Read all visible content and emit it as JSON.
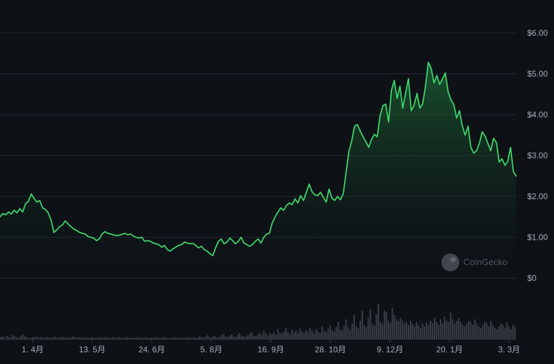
{
  "watermark": {
    "text": "CoinGecko"
  },
  "colors": {
    "background": "#0e1217",
    "line": "#3fd66a",
    "area_top": "#1d6a36",
    "grid": "#232a33",
    "volume": "#3a3f46",
    "tick": "#a6adb6"
  },
  "chart_data": {
    "type": "area",
    "title": "",
    "xlabel": "",
    "ylabel": "",
    "ylim": [
      0,
      6
    ],
    "y_ticks": [
      0,
      1,
      2,
      3,
      4,
      5,
      6
    ],
    "y_tick_labels": [
      "$0",
      "$1.00",
      "$2.00",
      "$3.00",
      "$4.00",
      "$5.00",
      "$6.00"
    ],
    "x_tick_labels": [
      "1. 4月",
      "13. 5月",
      "24. 6月",
      "5. 8月",
      "16. 9月",
      "28. 10月",
      "9. 12月",
      "20. 1月",
      "3. 3月"
    ],
    "x_tick_days": [
      23,
      65,
      107,
      149,
      191,
      233,
      275,
      317,
      359
    ],
    "x_range_days": [
      0,
      364
    ],
    "grid": true,
    "series": [
      {
        "values": [
          [
            0,
            1.5
          ],
          [
            2,
            1.58
          ],
          [
            4,
            1.55
          ],
          [
            6,
            1.62
          ],
          [
            8,
            1.57
          ],
          [
            10,
            1.66
          ],
          [
            12,
            1.6
          ],
          [
            14,
            1.7
          ],
          [
            16,
            1.62
          ],
          [
            18,
            1.82
          ],
          [
            20,
            1.88
          ],
          [
            22,
            2.06
          ],
          [
            24,
            1.95
          ],
          [
            26,
            1.86
          ],
          [
            28,
            1.9
          ],
          [
            30,
            1.72
          ],
          [
            32,
            1.68
          ],
          [
            34,
            1.6
          ],
          [
            36,
            1.42
          ],
          [
            38,
            1.12
          ],
          [
            40,
            1.18
          ],
          [
            42,
            1.26
          ],
          [
            44,
            1.3
          ],
          [
            46,
            1.4
          ],
          [
            48,
            1.33
          ],
          [
            50,
            1.26
          ],
          [
            52,
            1.2
          ],
          [
            54,
            1.17
          ],
          [
            56,
            1.12
          ],
          [
            58,
            1.1
          ],
          [
            60,
            1.08
          ],
          [
            62,
            1.02
          ],
          [
            64,
            1.0
          ],
          [
            66,
            0.98
          ],
          [
            68,
            0.92
          ],
          [
            70,
            0.96
          ],
          [
            72,
            1.08
          ],
          [
            74,
            1.14
          ],
          [
            76,
            1.1
          ],
          [
            78,
            1.08
          ],
          [
            80,
            1.06
          ],
          [
            82,
            1.04
          ],
          [
            84,
            1.05
          ],
          [
            86,
            1.07
          ],
          [
            88,
            1.1
          ],
          [
            90,
            1.06
          ],
          [
            92,
            1.08
          ],
          [
            94,
            1.03
          ],
          [
            96,
            1.0
          ],
          [
            98,
            0.98
          ],
          [
            100,
            1.0
          ],
          [
            102,
            0.9
          ],
          [
            104,
            0.92
          ],
          [
            106,
            0.9
          ],
          [
            108,
            0.86
          ],
          [
            110,
            0.84
          ],
          [
            112,
            0.82
          ],
          [
            114,
            0.76
          ],
          [
            116,
            0.8
          ],
          [
            118,
            0.7
          ],
          [
            120,
            0.66
          ],
          [
            122,
            0.72
          ],
          [
            124,
            0.76
          ],
          [
            126,
            0.8
          ],
          [
            128,
            0.82
          ],
          [
            130,
            0.88
          ],
          [
            132,
            0.86
          ],
          [
            134,
            0.84
          ],
          [
            136,
            0.85
          ],
          [
            138,
            0.8
          ],
          [
            140,
            0.74
          ],
          [
            142,
            0.78
          ],
          [
            144,
            0.7
          ],
          [
            146,
            0.66
          ],
          [
            148,
            0.6
          ],
          [
            150,
            0.55
          ],
          [
            152,
            0.74
          ],
          [
            154,
            0.9
          ],
          [
            156,
            0.96
          ],
          [
            158,
            0.84
          ],
          [
            160,
            0.88
          ],
          [
            162,
            0.98
          ],
          [
            164,
            0.92
          ],
          [
            166,
            0.84
          ],
          [
            168,
            0.9
          ],
          [
            170,
            1.0
          ],
          [
            172,
            0.86
          ],
          [
            174,
            0.82
          ],
          [
            176,
            0.78
          ],
          [
            178,
            0.82
          ],
          [
            180,
            0.9
          ],
          [
            182,
            0.96
          ],
          [
            184,
            0.86
          ],
          [
            186,
            1.0
          ],
          [
            188,
            1.08
          ],
          [
            190,
            1.1
          ],
          [
            192,
            1.36
          ],
          [
            194,
            1.5
          ],
          [
            196,
            1.62
          ],
          [
            198,
            1.72
          ],
          [
            200,
            1.66
          ],
          [
            202,
            1.78
          ],
          [
            204,
            1.84
          ],
          [
            206,
            1.8
          ],
          [
            208,
            1.94
          ],
          [
            210,
            1.84
          ],
          [
            212,
            2.02
          ],
          [
            214,
            1.9
          ],
          [
            216,
            2.1
          ],
          [
            218,
            2.3
          ],
          [
            220,
            2.12
          ],
          [
            222,
            2.04
          ],
          [
            224,
            2.02
          ],
          [
            226,
            2.1
          ],
          [
            228,
            1.98
          ],
          [
            230,
            1.86
          ],
          [
            232,
            2.18
          ],
          [
            234,
            1.96
          ],
          [
            236,
            1.9
          ],
          [
            238,
            2.0
          ],
          [
            240,
            1.92
          ],
          [
            242,
            2.06
          ],
          [
            244,
            2.58
          ],
          [
            246,
            3.1
          ],
          [
            248,
            3.36
          ],
          [
            250,
            3.72
          ],
          [
            252,
            3.76
          ],
          [
            254,
            3.6
          ],
          [
            256,
            3.46
          ],
          [
            258,
            3.34
          ],
          [
            260,
            3.2
          ],
          [
            262,
            3.4
          ],
          [
            264,
            3.52
          ],
          [
            266,
            3.46
          ],
          [
            268,
            3.98
          ],
          [
            270,
            4.22
          ],
          [
            272,
            4.26
          ],
          [
            274,
            3.82
          ],
          [
            276,
            4.6
          ],
          [
            278,
            4.84
          ],
          [
            280,
            4.4
          ],
          [
            282,
            4.7
          ],
          [
            284,
            4.16
          ],
          [
            286,
            4.54
          ],
          [
            288,
            4.88
          ],
          [
            290,
            4.1
          ],
          [
            292,
            4.24
          ],
          [
            294,
            4.52
          ],
          [
            296,
            4.16
          ],
          [
            298,
            4.26
          ],
          [
            300,
            4.7
          ],
          [
            302,
            5.28
          ],
          [
            304,
            5.14
          ],
          [
            306,
            4.78
          ],
          [
            308,
            4.96
          ],
          [
            310,
            4.74
          ],
          [
            312,
            4.88
          ],
          [
            314,
            5.02
          ],
          [
            316,
            4.56
          ],
          [
            318,
            4.36
          ],
          [
            320,
            4.24
          ],
          [
            322,
            3.92
          ],
          [
            324,
            4.1
          ],
          [
            326,
            3.72
          ],
          [
            328,
            3.5
          ],
          [
            330,
            3.72
          ],
          [
            332,
            3.2
          ],
          [
            334,
            3.06
          ],
          [
            336,
            3.12
          ],
          [
            338,
            3.3
          ],
          [
            340,
            3.58
          ],
          [
            342,
            3.48
          ],
          [
            344,
            3.3
          ],
          [
            346,
            3.12
          ],
          [
            348,
            3.42
          ],
          [
            350,
            3.32
          ],
          [
            352,
            2.84
          ],
          [
            354,
            2.92
          ],
          [
            356,
            2.76
          ],
          [
            358,
            2.86
          ],
          [
            360,
            3.2
          ],
          [
            362,
            2.6
          ],
          [
            364,
            2.5
          ]
        ]
      }
    ],
    "volume": [
      3,
      4,
      2,
      5,
      3,
      3,
      6,
      4,
      3,
      2,
      5,
      7,
      4,
      3,
      2,
      2,
      3,
      3,
      4,
      2,
      3,
      2,
      2,
      3,
      2,
      2,
      3,
      4,
      2,
      2,
      3,
      3,
      2,
      3,
      2,
      2,
      4,
      3,
      2,
      3,
      2,
      2,
      3,
      2,
      2,
      3,
      2,
      2,
      2,
      3,
      2,
      2,
      3,
      2,
      2,
      2,
      3,
      2,
      2,
      3,
      2,
      2,
      2,
      3,
      2,
      2,
      2,
      2,
      3,
      2,
      2,
      2,
      3,
      2,
      2,
      2,
      2,
      3,
      2,
      2,
      2,
      3,
      2,
      2,
      2,
      2,
      2,
      3,
      2,
      2,
      2,
      2,
      2,
      3,
      2,
      2,
      3,
      2,
      2,
      4,
      3,
      2,
      4,
      6,
      3,
      2,
      5,
      4,
      2,
      3,
      6,
      8,
      4,
      3,
      5,
      7,
      4,
      3,
      6,
      9,
      5,
      4,
      3,
      6,
      8,
      10,
      5,
      4,
      7,
      9,
      6,
      12,
      8,
      5,
      9,
      7,
      10,
      6,
      14,
      9,
      8,
      11,
      16,
      10,
      7,
      13,
      9,
      12,
      8,
      15,
      11,
      9,
      13,
      10,
      16,
      12,
      8,
      14,
      11,
      9,
      18,
      12,
      10,
      15,
      20,
      13,
      11,
      17,
      24,
      14,
      12,
      19,
      28,
      16,
      13,
      22,
      34,
      18,
      15,
      26,
      40,
      20,
      17,
      30,
      42,
      22,
      19,
      35,
      50,
      24,
      21,
      40,
      38,
      26,
      23,
      44,
      34,
      28,
      25,
      30,
      26,
      22,
      24,
      20,
      26,
      22,
      18,
      24,
      20,
      16,
      22,
      18,
      24,
      20,
      26,
      22,
      30,
      24,
      20,
      28,
      22,
      32,
      26,
      24,
      38,
      28,
      22,
      26,
      30,
      24,
      20,
      18,
      22,
      26,
      24,
      20,
      28,
      22,
      18,
      16,
      20,
      24,
      22,
      18,
      26,
      20,
      16,
      14,
      18,
      22,
      20,
      16,
      24,
      18,
      14,
      20,
      18
    ]
  }
}
